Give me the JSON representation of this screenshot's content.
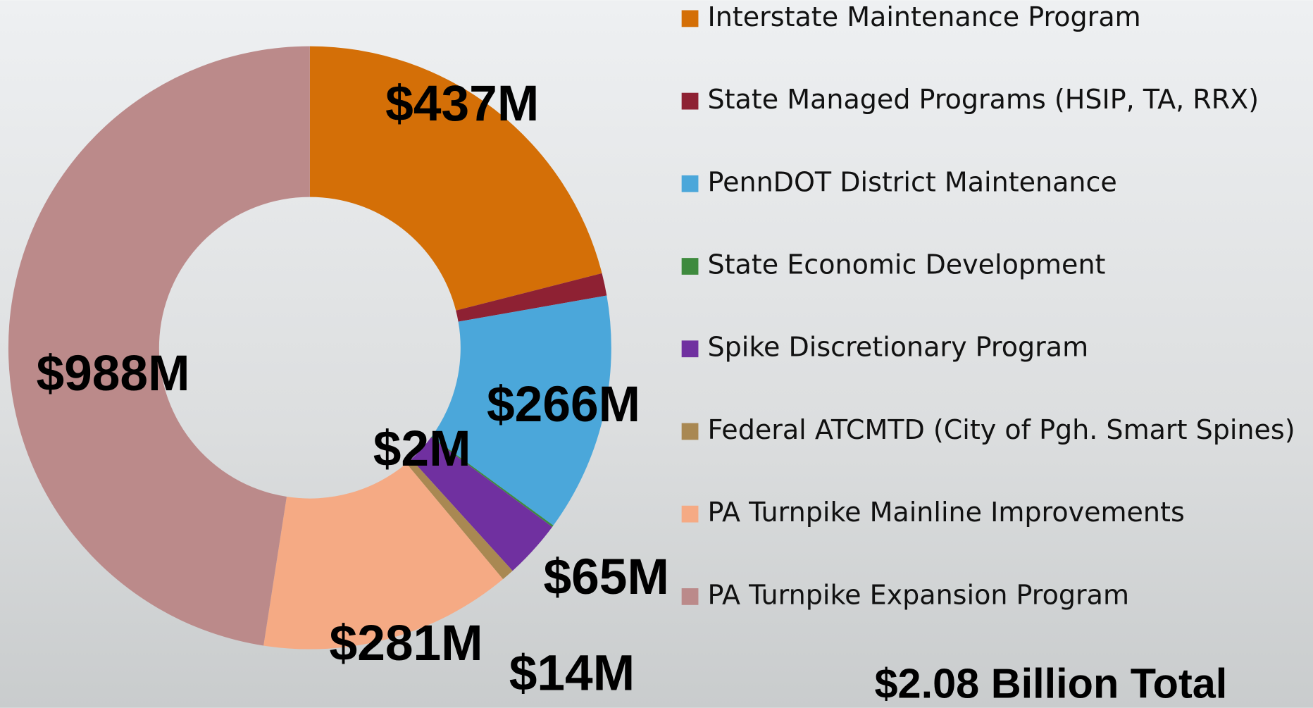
{
  "chart_data": {
    "type": "donut",
    "categories": [
      "Interstate Maintenance Program",
      "State Managed Programs (HSIP, TA, RRX)",
      "PennDOT District Maintenance",
      "State Economic Development",
      "Spike Discretionary Program",
      "Federal ATCMTD (City of Pgh. Smart Spines)",
      "PA Turnpike Mainline Improvements",
      "PA Turnpike Expansion Program"
    ],
    "values": [
      437,
      25,
      266,
      2,
      65,
      14,
      281,
      988
    ],
    "value_labels": [
      "$437M",
      null,
      "$266M",
      "$2M",
      "$65M",
      "$14M",
      "$281M",
      "$988M"
    ],
    "colors": [
      "#d46f07",
      "#8e2133",
      "#4ba7da",
      "#3e8a3e",
      "#7030a0",
      "#a98852",
      "#f5aa84",
      "#bb8a8a"
    ],
    "annotation": "$2.08  Billion Total"
  }
}
